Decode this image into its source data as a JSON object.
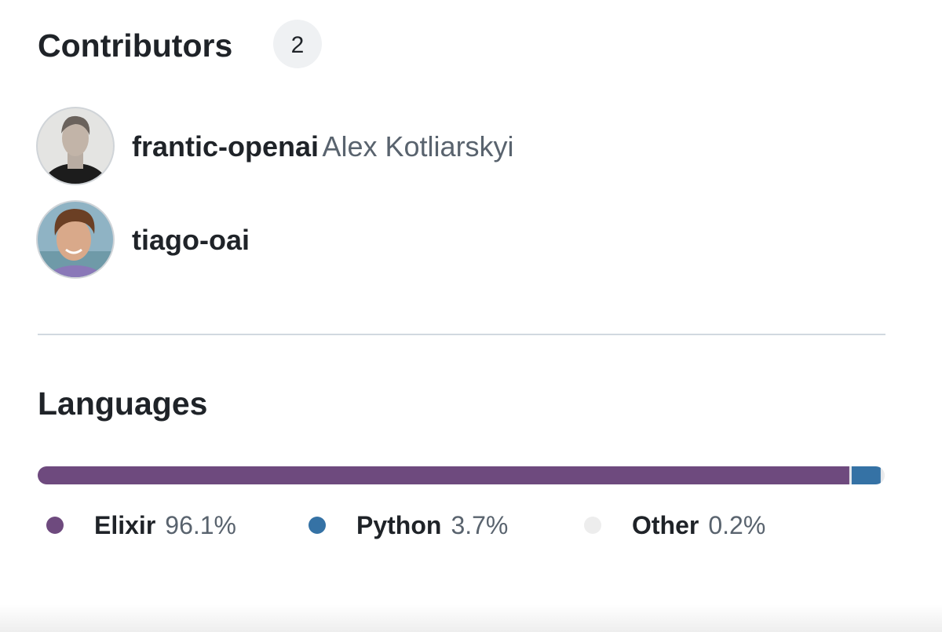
{
  "contributors": {
    "title": "Contributors",
    "count": "2",
    "people": [
      {
        "login": "frantic-openai",
        "name": "Alex Kotliarskyi"
      },
      {
        "login": "tiago-oai"
      }
    ]
  },
  "languages": {
    "title": "Languages",
    "items": [
      {
        "name": "Elixir",
        "percent": 96.1,
        "percent_label": "96.1%",
        "color": "#6e4a7e"
      },
      {
        "name": "Python",
        "percent": 3.7,
        "percent_label": "3.7%",
        "color": "#3572a5"
      },
      {
        "name": "Other",
        "percent": 0.2,
        "percent_label": "0.2%",
        "color": "#ededed"
      }
    ]
  }
}
